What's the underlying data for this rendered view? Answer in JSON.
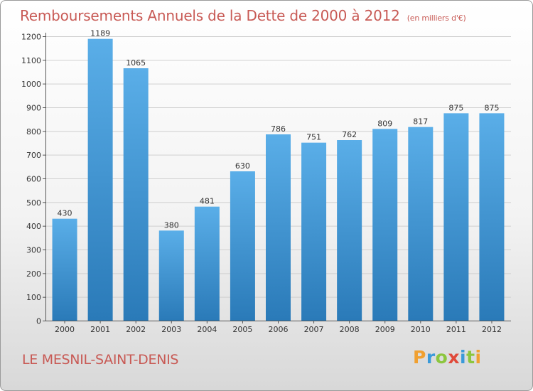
{
  "title": "Remboursements Annuels de la Dette de 2000 à 2012",
  "unit_note": "(en milliers d'€)",
  "commune": "LE MESNIL-SAINT-DENIS",
  "logo": {
    "letters": [
      "P",
      "r",
      "o",
      "x",
      "i",
      "t",
      "i"
    ],
    "colors": [
      "#f0a030",
      "#3a9ad9",
      "#8cc63e",
      "#e04a3a",
      "#3a9ad9",
      "#8cc63e",
      "#f0a030"
    ]
  },
  "colors": {
    "title": "#c85a55",
    "bar_top": "#5aaee8",
    "bar_bottom": "#2a7ab8",
    "grid": "#cfcfcf"
  },
  "chart_data": {
    "type": "bar",
    "title": "Remboursements Annuels de la Dette de 2000 à 2012",
    "xlabel": "",
    "ylabel": "",
    "categories": [
      "2000",
      "2001",
      "2002",
      "2003",
      "2004",
      "2005",
      "2006",
      "2007",
      "2008",
      "2009",
      "2010",
      "2011",
      "2012"
    ],
    "values": [
      430,
      1189,
      1065,
      380,
      481,
      630,
      786,
      751,
      762,
      809,
      817,
      875,
      875
    ],
    "ylim": [
      0,
      1200
    ],
    "yticks": [
      0,
      100,
      200,
      300,
      400,
      500,
      600,
      700,
      800,
      900,
      1000,
      1100,
      1200
    ],
    "grid": true
  }
}
